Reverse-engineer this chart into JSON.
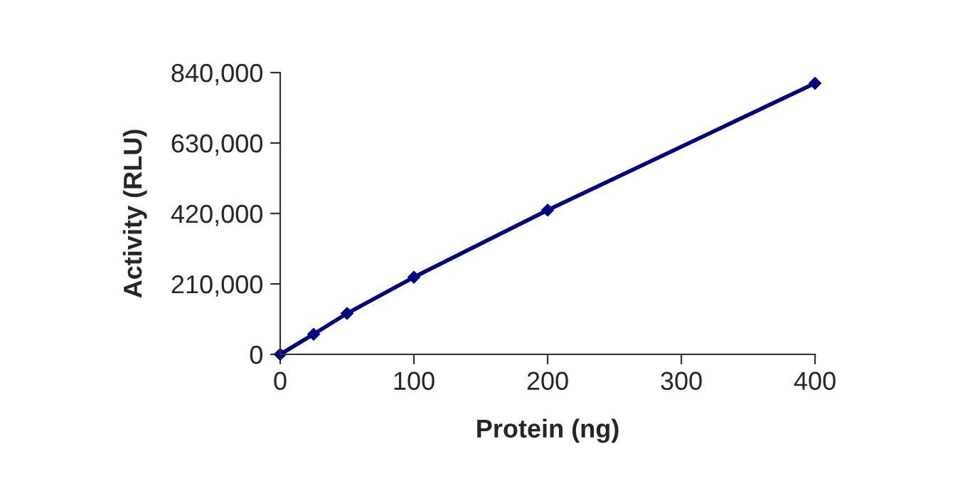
{
  "chart_data": {
    "type": "line",
    "xlabel": "Protein (ng)",
    "ylabel": "Activity (RLU)",
    "x": [
      0,
      25,
      50,
      100,
      200,
      400
    ],
    "series": [
      {
        "color": "#000080",
        "values": [
          0,
          60000,
          122000,
          230000,
          430000,
          808000
        ]
      }
    ],
    "xlim": [
      0,
      400
    ],
    "xticks": [
      0,
      100,
      200,
      300,
      400
    ],
    "ylim": [
      0,
      840000
    ],
    "yticks": [
      {
        "value": 0,
        "label": "0"
      },
      {
        "value": 210000,
        "label": "210,000"
      },
      {
        "value": 420000,
        "label": "420,000"
      },
      {
        "value": 630000,
        "label": "630,000"
      },
      {
        "value": 840000,
        "label": "840,000"
      }
    ],
    "grid": false,
    "marker": "diamond",
    "line_style": "solid"
  }
}
